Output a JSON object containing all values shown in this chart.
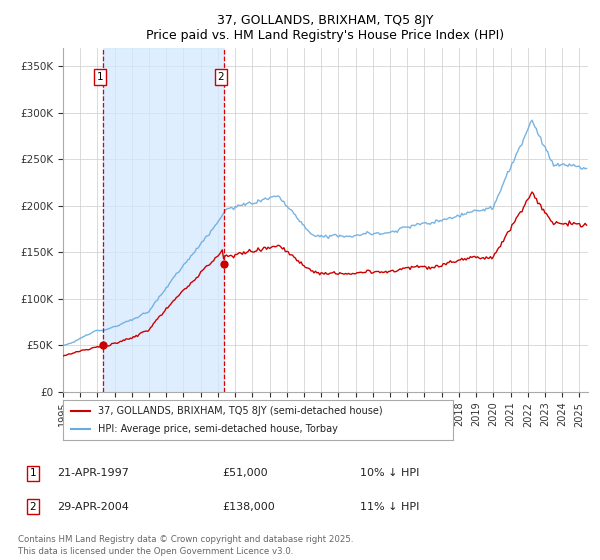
{
  "title1": "37, GOLLANDS, BRIXHAM, TQ5 8JY",
  "title2": "Price paid vs. HM Land Registry's House Price Index (HPI)",
  "xlim_start": 1995.0,
  "xlim_end": 2025.5,
  "ylim_min": 0,
  "ylim_max": 370000,
  "yticks": [
    0,
    50000,
    100000,
    150000,
    200000,
    250000,
    300000,
    350000
  ],
  "ytick_labels": [
    "£0",
    "£50K",
    "£100K",
    "£150K",
    "£200K",
    "£250K",
    "£300K",
    "£350K"
  ],
  "xticks": [
    1995,
    1996,
    1997,
    1998,
    1999,
    2000,
    2001,
    2002,
    2003,
    2004,
    2005,
    2006,
    2007,
    2008,
    2009,
    2010,
    2011,
    2012,
    2013,
    2014,
    2015,
    2016,
    2017,
    2018,
    2019,
    2020,
    2021,
    2022,
    2023,
    2024,
    2025
  ],
  "sale1_x": 1997.31,
  "sale1_y": 51000,
  "sale2_x": 2004.33,
  "sale2_y": 138000,
  "vline_color": "#dd0000",
  "shade_color": "#d0e8ff",
  "hpi_color": "#6aabde",
  "price_color": "#cc0000",
  "legend_label1": "37, GOLLANDS, BRIXHAM, TQ5 8JY (semi-detached house)",
  "legend_label2": "HPI: Average price, semi-detached house, Torbay",
  "note1_date": "21-APR-1997",
  "note1_price": "£51,000",
  "note1_hpi": "10% ↓ HPI",
  "note2_date": "29-APR-2004",
  "note2_price": "£138,000",
  "note2_hpi": "11% ↓ HPI",
  "footer": "Contains HM Land Registry data © Crown copyright and database right 2025.\nThis data is licensed under the Open Government Licence v3.0.",
  "bg_color": "#ffffff",
  "grid_color": "#cccccc"
}
